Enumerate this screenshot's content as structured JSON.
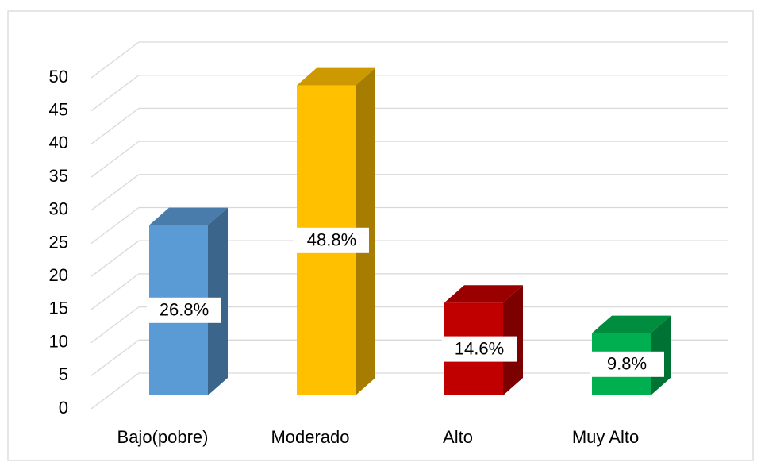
{
  "chart_data": {
    "type": "bar3d",
    "categories": [
      "Bajo(pobre)",
      "Moderado",
      "Alto",
      "Muy Alto"
    ],
    "values": [
      26.8,
      48.8,
      14.6,
      9.8
    ],
    "value_labels": [
      "26.8%",
      "48.8%",
      "14.6%",
      "9.8%"
    ],
    "colors": [
      "#5b9bd5",
      "#ffc000",
      "#c00000",
      "#00b050"
    ],
    "ylim": [
      0,
      50
    ],
    "yticks": [
      0,
      5,
      10,
      15,
      20,
      25,
      30,
      35,
      40,
      45,
      50
    ],
    "grid": true
  }
}
